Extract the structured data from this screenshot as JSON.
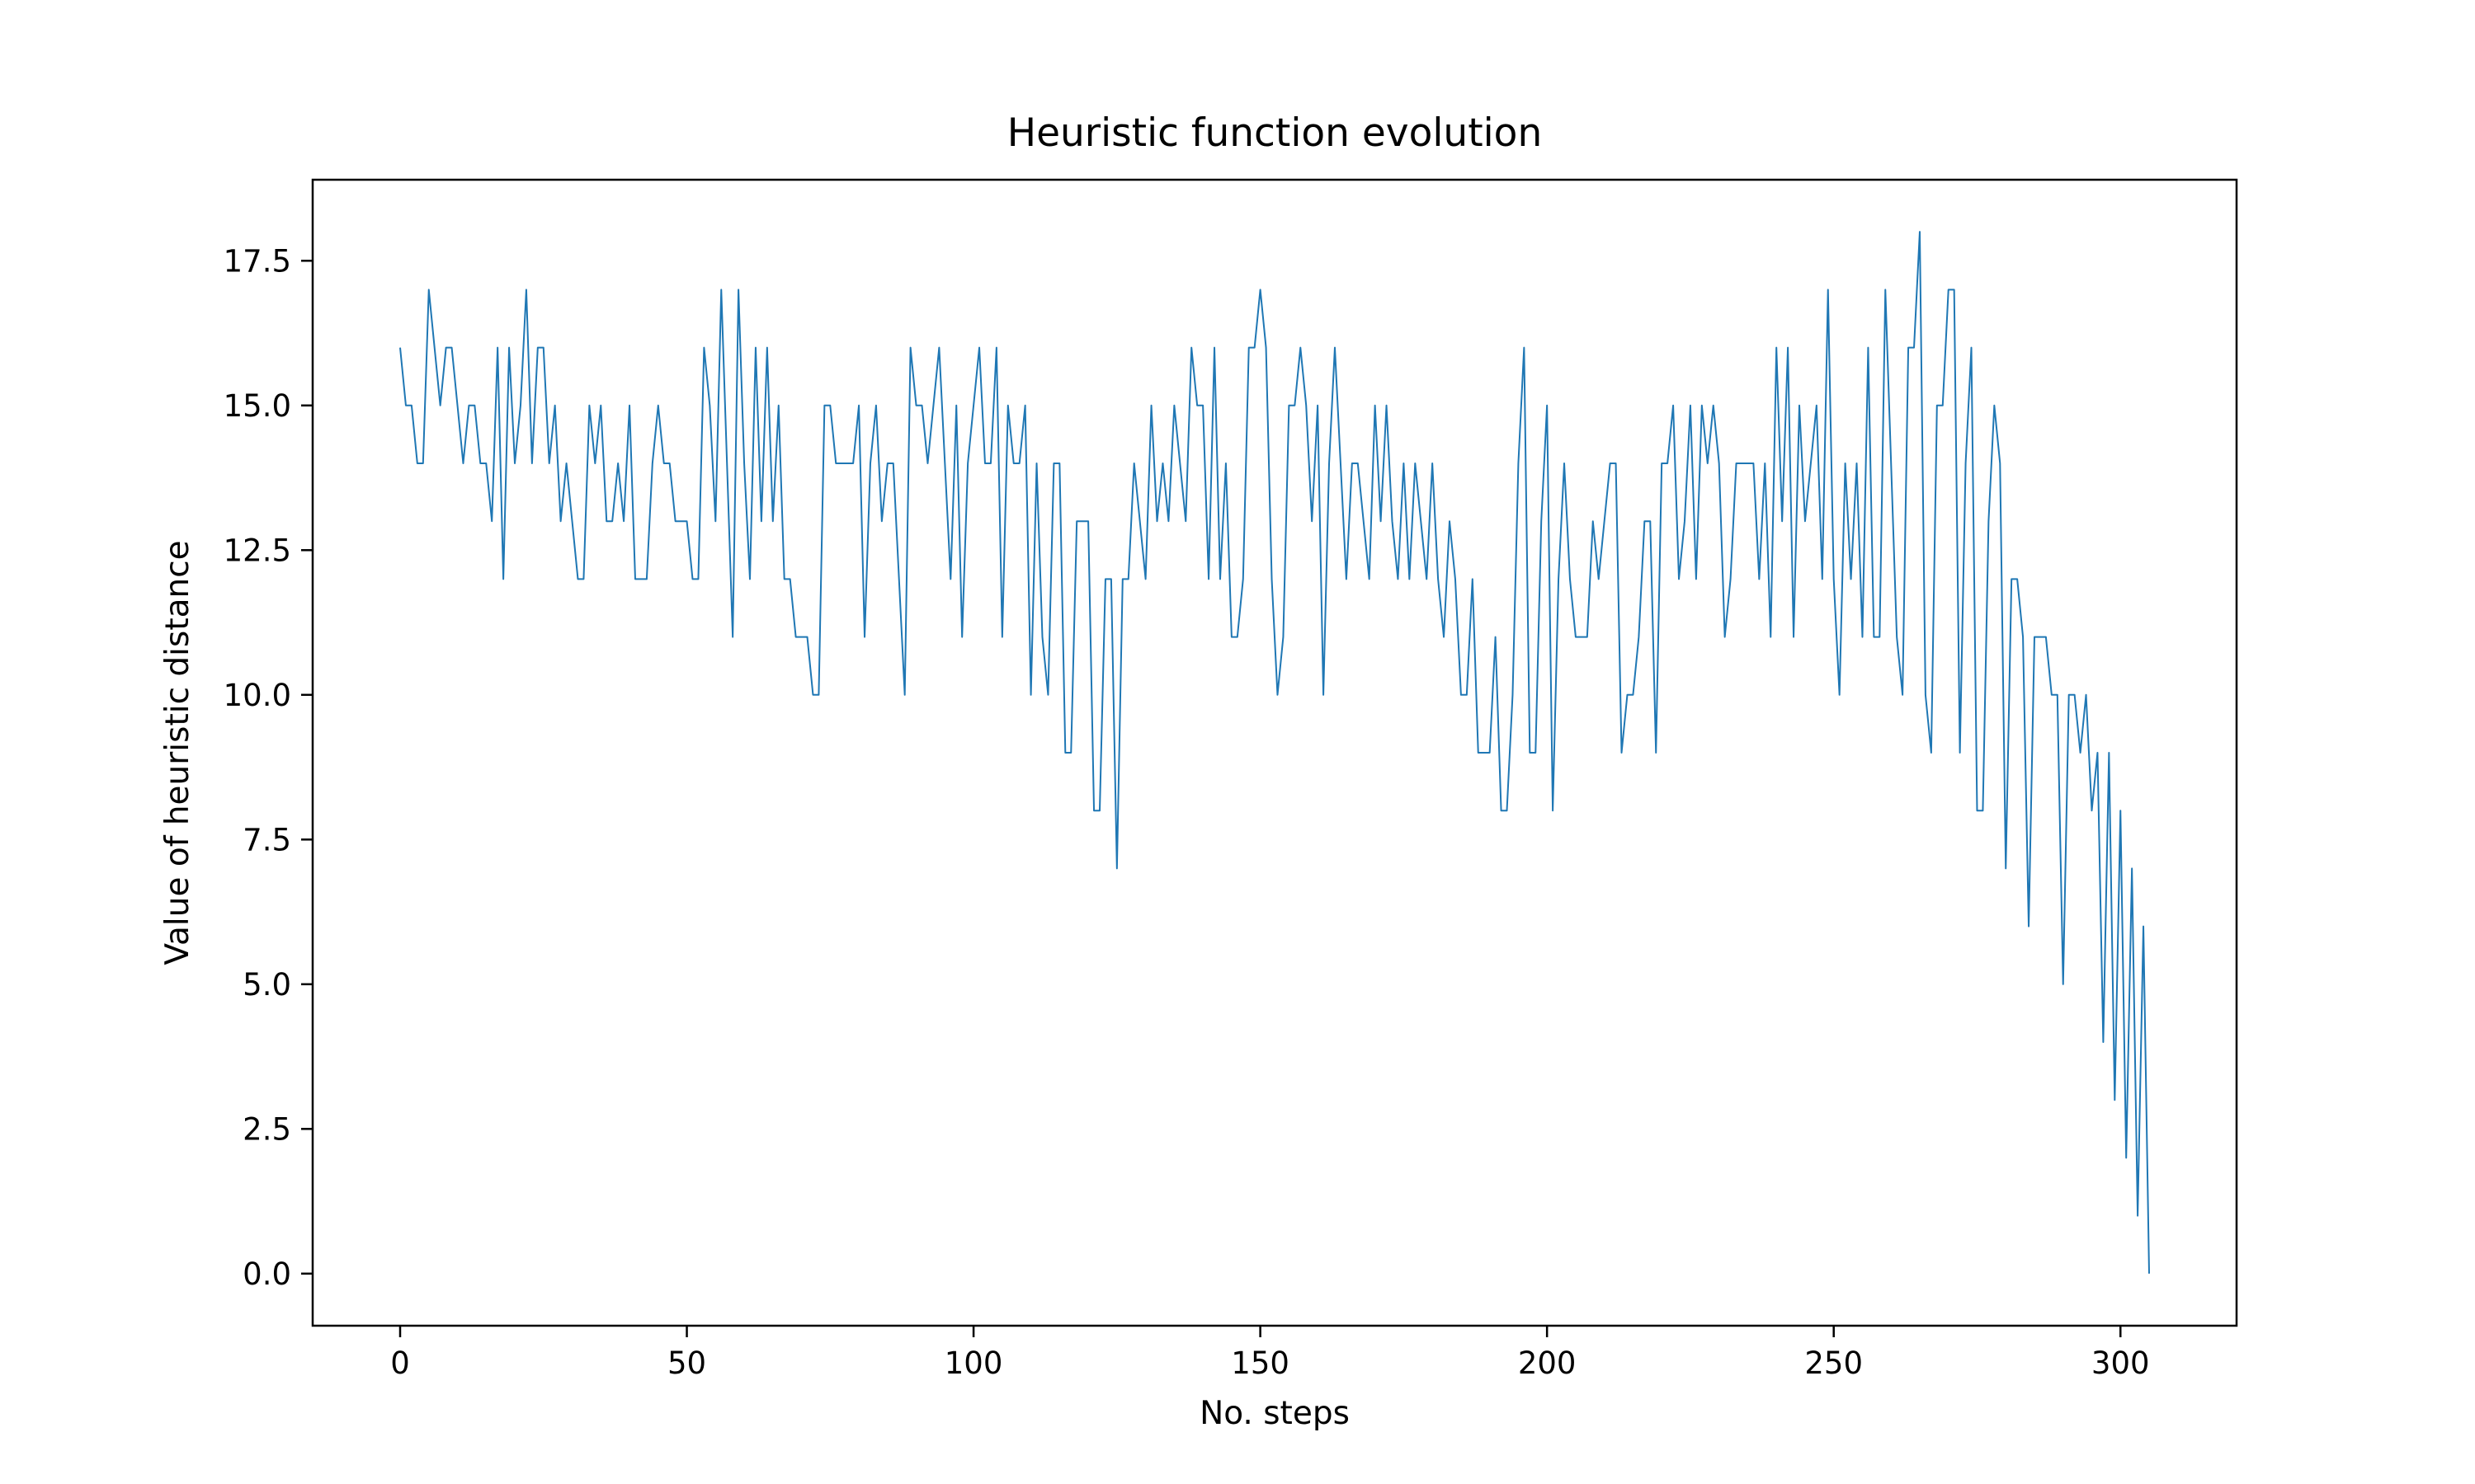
{
  "chart_data": {
    "type": "line",
    "title": "Heuristic function evolution",
    "xlabel": "No. steps",
    "ylabel": "Value of heuristic distance",
    "xlim": [
      -15.25,
      320.25
    ],
    "ylim": [
      -0.9,
      18.9
    ],
    "xticks": [
      0,
      50,
      100,
      150,
      200,
      250,
      300
    ],
    "xtick_labels": [
      "0",
      "50",
      "100",
      "150",
      "200",
      "250",
      "300"
    ],
    "yticks": [
      0,
      2.5,
      5,
      7.5,
      10,
      12.5,
      15,
      17.5
    ],
    "ytick_labels": [
      "0.0",
      "2.5",
      "5.0",
      "7.5",
      "10.0",
      "12.5",
      "15.0",
      "17.5"
    ],
    "grid": false,
    "legend": "none",
    "line_color": "#1f77b4",
    "series": [
      {
        "x_start": 0,
        "x_step": 1,
        "values": [
          16,
          15,
          15,
          14,
          14,
          17,
          16,
          15,
          16,
          16,
          15,
          14,
          15,
          15,
          14,
          14,
          13,
          16,
          12,
          16,
          14,
          15,
          17,
          14,
          16,
          16,
          14,
          15,
          13,
          14,
          13,
          12,
          12,
          15,
          14,
          15,
          13,
          13,
          14,
          13,
          15,
          12,
          12,
          12,
          14,
          15,
          14,
          14,
          13,
          13,
          13,
          12,
          12,
          16,
          15,
          13,
          17,
          14,
          11,
          17,
          14,
          12,
          16,
          13,
          16,
          13,
          15,
          12,
          12,
          11,
          11,
          11,
          10,
          10,
          15,
          15,
          14,
          14,
          14,
          14,
          15,
          11,
          14,
          15,
          13,
          14,
          14,
          12,
          10,
          16,
          15,
          15,
          14,
          15,
          16,
          14,
          12,
          15,
          11,
          14,
          15,
          16,
          14,
          14,
          16,
          11,
          15,
          14,
          14,
          15,
          10,
          14,
          11,
          10,
          14,
          14,
          9,
          9,
          13,
          13,
          13,
          8,
          8,
          12,
          12,
          7,
          12,
          12,
          14,
          13,
          12,
          15,
          13,
          14,
          13,
          15,
          14,
          13,
          16,
          15,
          15,
          12,
          16,
          12,
          14,
          11,
          11,
          12,
          16,
          16,
          17,
          16,
          12,
          10,
          11,
          15,
          15,
          16,
          15,
          13,
          15,
          10,
          14,
          16,
          14,
          12,
          14,
          14,
          13,
          12,
          15,
          13,
          15,
          13,
          12,
          14,
          12,
          14,
          13,
          12,
          14,
          12,
          11,
          13,
          12,
          10,
          10,
          12,
          9,
          9,
          9,
          11,
          8,
          8,
          10,
          14,
          16,
          9,
          9,
          13,
          15,
          8,
          12,
          14,
          12,
          11,
          11,
          11,
          13,
          12,
          13,
          14,
          14,
          9,
          10,
          10,
          11,
          13,
          13,
          9,
          14,
          14,
          15,
          12,
          13,
          15,
          12,
          15,
          14,
          15,
          14,
          11,
          12,
          14,
          14,
          14,
          14,
          12,
          14,
          11,
          16,
          13,
          16,
          11,
          15,
          13,
          14,
          15,
          12,
          17,
          12,
          10,
          14,
          12,
          14,
          11,
          16,
          11,
          11,
          17,
          14,
          11,
          10,
          16,
          16,
          18,
          10,
          9,
          15,
          15,
          17,
          17,
          9,
          14,
          16,
          8,
          8,
          13,
          15,
          14,
          7,
          12,
          12,
          11,
          6,
          11,
          11,
          11,
          10,
          10,
          5,
          10,
          10,
          9,
          10,
          8,
          9,
          4,
          9,
          3,
          8,
          2,
          7,
          1,
          6,
          0
        ]
      }
    ]
  }
}
